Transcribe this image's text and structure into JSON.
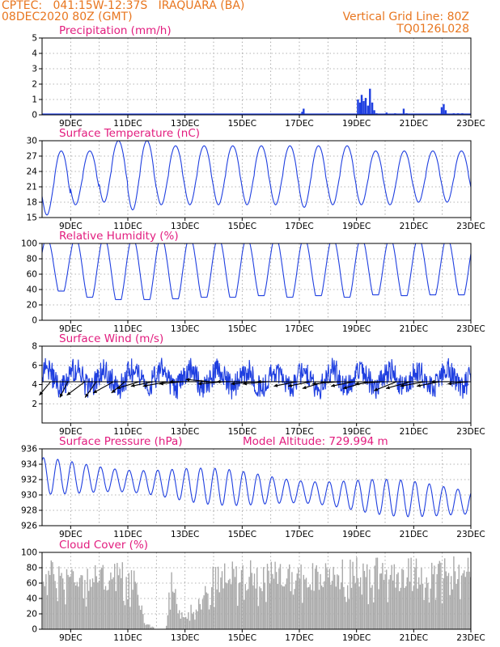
{
  "header": {
    "line1_left": "CPTEC:   041:15W-12:37S   IRAQUARA (BA)",
    "line2_left": "08DEC2020 80Z (GMT)",
    "line2_right": "Vertical Grid Line: 80Z",
    "line3_right": "TQ0126L028"
  },
  "colors": {
    "header": "#e8761f",
    "panel_title": "#e21c7e",
    "series": "#1f3fe0",
    "cloud": "#a9a9a9",
    "axis": "#000000"
  },
  "x_axis": {
    "tick_labels": [
      "9DEC",
      "11DEC",
      "13DEC",
      "15DEC",
      "17DEC",
      "19DEC",
      "21DEC",
      "23DEC"
    ],
    "tick_days": [
      9,
      11,
      13,
      15,
      17,
      19,
      21,
      23
    ],
    "range_days": [
      8.0,
      23.0
    ]
  },
  "chart_data": [
    {
      "id": "precip",
      "type": "bar",
      "title": "Precipitation (mm/h)",
      "ylim": [
        0,
        5
      ],
      "yticks": [
        "0",
        "1",
        "2",
        "3",
        "4",
        "5"
      ],
      "grid": true,
      "x_unit": "day of Dec 2020",
      "bars": [
        [
          17.1,
          0.2
        ],
        [
          17.15,
          0.4
        ],
        [
          19.05,
          1.0
        ],
        [
          19.12,
          0.8
        ],
        [
          19.18,
          1.3
        ],
        [
          19.25,
          0.9
        ],
        [
          19.32,
          1.1
        ],
        [
          19.4,
          0.6
        ],
        [
          19.47,
          1.7
        ],
        [
          19.55,
          0.8
        ],
        [
          19.62,
          0.3
        ],
        [
          19.7,
          0.1
        ],
        [
          20.05,
          0.15
        ],
        [
          20.35,
          0.1
        ],
        [
          20.65,
          0.4
        ],
        [
          20.75,
          0.1
        ],
        [
          21.2,
          0.05
        ],
        [
          21.98,
          0.5
        ],
        [
          22.05,
          0.7
        ],
        [
          22.12,
          0.3
        ],
        [
          22.4,
          0.1
        ],
        [
          22.55,
          0.1
        ],
        [
          22.7,
          0.1
        ]
      ]
    },
    {
      "id": "temp",
      "type": "line",
      "title": "Surface Temperature (nC)",
      "ylim": [
        15,
        30
      ],
      "yticks": [
        "15",
        "18",
        "21",
        "24",
        "27",
        "30"
      ],
      "grid": true,
      "daily_max": [
        28.0,
        28.0,
        30.0,
        30.0,
        29.0,
        29.0,
        29.0,
        29.0,
        29.0,
        29.0,
        29.0,
        28.0,
        28.0,
        28.0,
        28.0
      ],
      "daily_min": [
        15.5,
        17.5,
        18.0,
        16.5,
        17.5,
        17.5,
        17.5,
        17.5,
        17.5,
        17.0,
        17.5,
        17.5,
        17.5,
        18.0,
        18.0
      ]
    },
    {
      "id": "rh",
      "type": "line",
      "title": "Relative Humidity (%)",
      "ylim": [
        0,
        100
      ],
      "yticks": [
        "0",
        "20",
        "40",
        "60",
        "80",
        "100"
      ],
      "grid": true,
      "daily_max": [
        100,
        100,
        100,
        100,
        100,
        100,
        100,
        100,
        100,
        100,
        100,
        100,
        100,
        100,
        100
      ],
      "daily_min": [
        38,
        30,
        27,
        27,
        28,
        30,
        30,
        32,
        30,
        32,
        30,
        33,
        32,
        33,
        33
      ]
    },
    {
      "id": "wind",
      "type": "line",
      "title": "Surface Wind (m/s)",
      "ylim": [
        0,
        8
      ],
      "yticks": [
        "2",
        "4",
        "6",
        "8"
      ],
      "grid": true,
      "series_mean": 4.6,
      "series_amplitude": 1.5,
      "vectors_note": "wind direction arrows along y=4.3 baseline",
      "vector_days": [
        8.3,
        8.9,
        9.5,
        9.9,
        10.5,
        10.9,
        11.4,
        11.9,
        12.4,
        12.9,
        13.4,
        13.9,
        14.4,
        14.9,
        15.4,
        15.9,
        16.4,
        16.9,
        17.4,
        17.9,
        18.4,
        18.9,
        19.4,
        19.9,
        20.4,
        20.9,
        21.4,
        21.9,
        22.4,
        22.9
      ],
      "vector_dx": [
        -0.5,
        -0.35,
        -0.8,
        -0.5,
        -0.9,
        -0.6,
        -1.0,
        -1.0,
        -1.1,
        -1.0,
        -1.2,
        -1.1,
        -1.2,
        -1.0,
        -1.0,
        -1.1,
        -1.1,
        -1.0,
        -1.0,
        -1.0,
        -1.2,
        -1.0,
        -1.1,
        -1.2,
        -1.0,
        -1.1,
        -1.1,
        -1.0,
        -1.0,
        -0.9
      ],
      "vector_dy": [
        -0.6,
        -0.7,
        -0.6,
        -0.7,
        -0.5,
        -0.5,
        -0.3,
        -0.2,
        -0.2,
        -0.1,
        0.0,
        0.1,
        -0.1,
        0.0,
        -0.1,
        -0.1,
        0.0,
        -0.2,
        -0.2,
        -0.3,
        -0.1,
        -0.2,
        -0.3,
        -0.1,
        -0.4,
        -0.3,
        -0.2,
        -0.2,
        0.0,
        -0.1
      ]
    },
    {
      "id": "pres",
      "type": "line",
      "title": "Surface Pressure (hPa)",
      "subtitle": "Model Altitude: 729.994 m",
      "ylim": [
        926,
        936
      ],
      "yticks": [
        "926",
        "928",
        "930",
        "932",
        "934",
        "936"
      ],
      "grid": true,
      "trend_start": 932.5,
      "trend_end": 929.0,
      "semidiurnal_amplitude": 1.9
    },
    {
      "id": "cloud",
      "type": "bar",
      "title": "Cloud Cover (%)",
      "ylim": [
        0,
        100
      ],
      "yticks": [
        "0",
        "20",
        "40",
        "60",
        "80",
        "100"
      ],
      "grid": true,
      "levels_by_day": [
        [
          8.0,
          92
        ],
        [
          9.0,
          88
        ],
        [
          10.0,
          85
        ],
        [
          10.7,
          92
        ],
        [
          11.2,
          85
        ],
        [
          11.6,
          10
        ],
        [
          12.0,
          0
        ],
        [
          12.3,
          0
        ],
        [
          12.5,
          85
        ],
        [
          12.9,
          25
        ],
        [
          13.3,
          35
        ],
        [
          13.7,
          60
        ],
        [
          14.0,
          85
        ],
        [
          15.0,
          92
        ],
        [
          16.0,
          88
        ],
        [
          17.0,
          90
        ],
        [
          18.0,
          88
        ],
        [
          19.0,
          95
        ],
        [
          20.0,
          97
        ],
        [
          21.0,
          95
        ],
        [
          22.0,
          95
        ],
        [
          23.0,
          97
        ]
      ]
    }
  ]
}
